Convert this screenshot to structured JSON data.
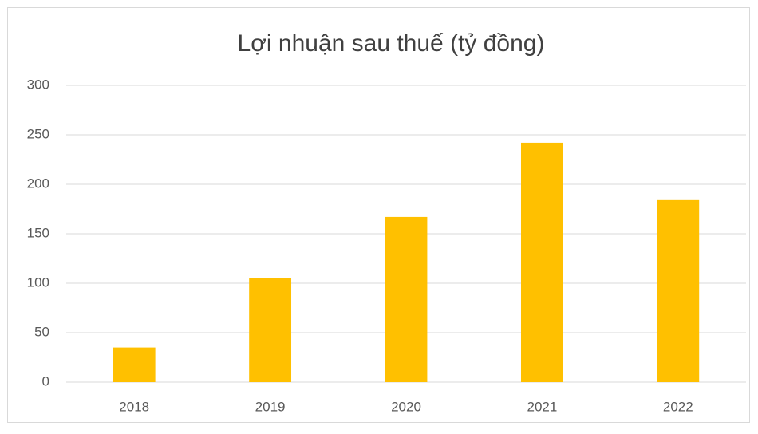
{
  "chart_data": {
    "type": "bar",
    "title": "Lợi nhuận sau thuế (tỷ đồng)",
    "categories": [
      "2018",
      "2019",
      "2020",
      "2021",
      "2022"
    ],
    "values": [
      35,
      105,
      167,
      242,
      184
    ],
    "color": "#ffc000",
    "ylim": [
      0,
      300
    ],
    "yticks": [
      0,
      50,
      100,
      150,
      200,
      250,
      300
    ],
    "grid": true
  }
}
